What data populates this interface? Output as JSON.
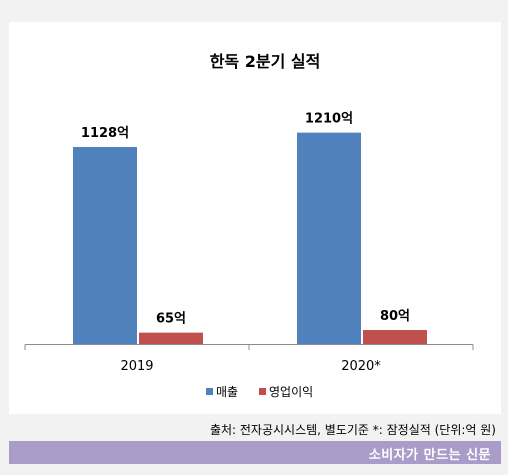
{
  "chart_data": {
    "type": "bar",
    "title": "한독 2분기 실적",
    "categories": [
      "2019",
      "2020*"
    ],
    "series": [
      {
        "name": "매출",
        "values": [
          1128,
          1210
        ],
        "labels": [
          "1128억",
          "1210억"
        ],
        "color": "#4f81bd"
      },
      {
        "name": "영업이익",
        "values": [
          65,
          80
        ],
        "labels": [
          "65억",
          "80억"
        ],
        "color": "#c0504d"
      }
    ],
    "ylim": [
      0,
      1500
    ],
    "grid": false,
    "legend": "bottom"
  },
  "source_note": "출처: 전자공시시스템, 별도기준 *: 잠정실적 (단위:억 원)",
  "footer": {
    "brand": "소비자가 만드는 신문"
  }
}
